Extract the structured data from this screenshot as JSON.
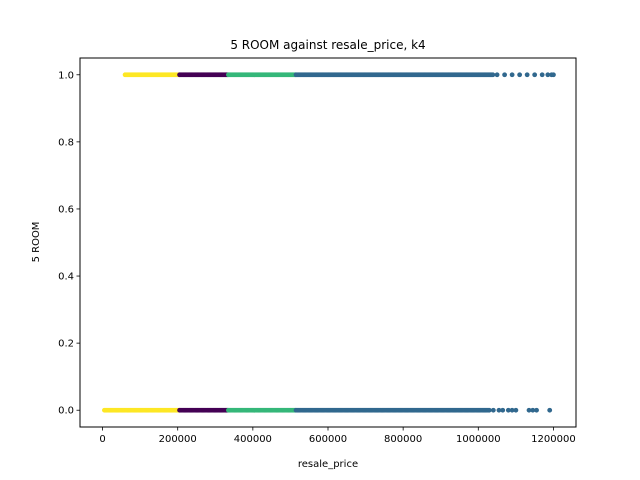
{
  "chart_data": {
    "type": "scatter",
    "title": "5 ROOM against resale_price, k4",
    "xlabel": "resale_price",
    "ylabel": "5 ROOM",
    "xlim": [
      -60000,
      1260000
    ],
    "ylim": [
      -0.05,
      1.05
    ],
    "xticks": [
      0,
      200000,
      400000,
      600000,
      800000,
      1000000,
      1200000
    ],
    "xtick_labels": [
      "0",
      "200000",
      "400000",
      "600000",
      "800000",
      "1000000",
      "1200000"
    ],
    "yticks": [
      0.0,
      0.2,
      0.4,
      0.6,
      0.8,
      1.0
    ],
    "ytick_labels": [
      "0.0",
      "0.2",
      "0.4",
      "0.6",
      "0.8",
      "1.0"
    ],
    "grid": false,
    "legend": "none",
    "clusters": [
      {
        "color": "#fde725",
        "ranges": [
          {
            "y": 1,
            "x": [
              60000,
              205000
            ]
          },
          {
            "y": 0,
            "x": [
              5000,
              205000
            ]
          }
        ]
      },
      {
        "color": "#440154",
        "ranges": [
          {
            "y": 1,
            "x": [
              205000,
              335000
            ]
          },
          {
            "y": 0,
            "x": [
              205000,
              335000
            ]
          }
        ]
      },
      {
        "color": "#35b779",
        "ranges": [
          {
            "y": 1,
            "x": [
              335000,
              515000
            ]
          },
          {
            "y": 0,
            "x": [
              335000,
              515000
            ]
          }
        ]
      },
      {
        "color": "#31688e",
        "ranges": [
          {
            "y": 1,
            "x": [
              515000,
              1040000
            ]
          },
          {
            "y": 0,
            "x": [
              515000,
              1030000
            ]
          }
        ],
        "outliers": [
          {
            "x": 1050000,
            "y": 1
          },
          {
            "x": 1070000,
            "y": 1
          },
          {
            "x": 1090000,
            "y": 1
          },
          {
            "x": 1110000,
            "y": 1
          },
          {
            "x": 1130000,
            "y": 1
          },
          {
            "x": 1150000,
            "y": 1
          },
          {
            "x": 1170000,
            "y": 1
          },
          {
            "x": 1185000,
            "y": 1
          },
          {
            "x": 1195000,
            "y": 1
          },
          {
            "x": 1200000,
            "y": 1
          },
          {
            "x": 1040000,
            "y": 0
          },
          {
            "x": 1055000,
            "y": 0
          },
          {
            "x": 1065000,
            "y": 0
          },
          {
            "x": 1080000,
            "y": 0
          },
          {
            "x": 1090000,
            "y": 0
          },
          {
            "x": 1100000,
            "y": 0
          },
          {
            "x": 1135000,
            "y": 0
          },
          {
            "x": 1145000,
            "y": 0
          },
          {
            "x": 1155000,
            "y": 0
          },
          {
            "x": 1190000,
            "y": 0
          }
        ]
      }
    ]
  }
}
